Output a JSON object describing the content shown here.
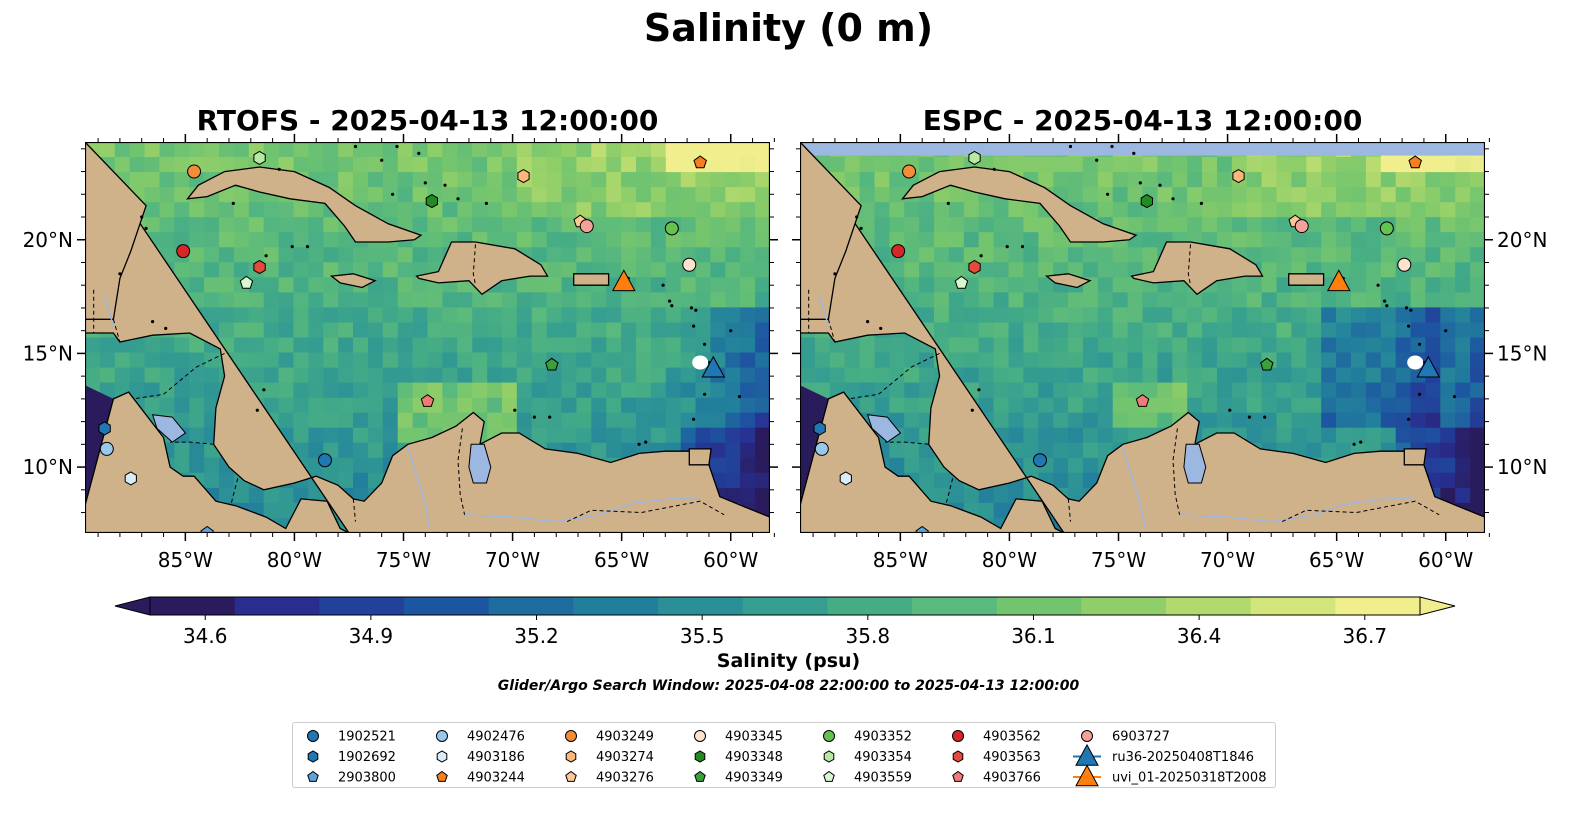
{
  "figure": {
    "title": "Salinity (0 m)",
    "colorbar_label": "Salinity (psu)",
    "search_window": "Glider/Argo Search Window: 2025-04-08 22:00:00 to 2025-04-13 12:00:00"
  },
  "panels": [
    {
      "title": "RTOFS - 2025-04-13 12:00:00"
    },
    {
      "title": "ESPC - 2025-04-13 12:00:00"
    }
  ],
  "axes": {
    "lon_ticks": [
      "85°W",
      "80°W",
      "75°W",
      "70°W",
      "65°W",
      "60°W"
    ],
    "lon_values": [
      -85,
      -80,
      -75,
      -70,
      -65,
      -60
    ],
    "lat_ticks": [
      "10°N",
      "15°N",
      "20°N"
    ],
    "lat_values": [
      10,
      15,
      20
    ],
    "lon_range": [
      -89.6,
      -58.2
    ],
    "lat_range": [
      7.1,
      24.3
    ]
  },
  "colorbar": {
    "min": 34.5,
    "max": 36.8,
    "ticks": [
      "34.6",
      "34.9",
      "35.2",
      "35.5",
      "35.8",
      "36.1",
      "36.4",
      "36.7"
    ],
    "tick_values": [
      34.6,
      34.9,
      35.2,
      35.5,
      35.8,
      36.1,
      36.4,
      36.7
    ],
    "colors": [
      "#2a1c5c",
      "#282d8e",
      "#22419a",
      "#1d56a0",
      "#1f6c9f",
      "#227f9c",
      "#2b8f97",
      "#369e90",
      "#45ac86",
      "#5ab97c",
      "#72c46f",
      "#8fce69",
      "#b1d96d",
      "#d2e67b",
      "#f1ee8e"
    ]
  },
  "colors": {
    "land": "#d0b28a",
    "lake": "#9cb7e0",
    "ocean_mid": "#52b184",
    "deep_pacific": "#2a1c5c",
    "espc_missing": "#9cb7e0"
  },
  "legend": [
    {
      "label": "1902521",
      "marker": "circle",
      "color": "#1f77b4"
    },
    {
      "label": "1902692",
      "marker": "hexagon",
      "color": "#1f77b4"
    },
    {
      "label": "2903800",
      "marker": "pentagon",
      "color": "#5fa2dd"
    },
    {
      "label": "4902476",
      "marker": "circle",
      "color": "#98c8ec"
    },
    {
      "label": "4903186",
      "marker": "hexagon",
      "color": "#d8ecfa"
    },
    {
      "label": "4903244",
      "marker": "pentagon",
      "color": "#f47f1c"
    },
    {
      "label": "4903249",
      "marker": "circle",
      "color": "#f28d3a"
    },
    {
      "label": "4903274",
      "marker": "hexagon",
      "color": "#fdb77a"
    },
    {
      "label": "4903276",
      "marker": "pentagon",
      "color": "#fdc896"
    },
    {
      "label": "4903345",
      "marker": "circle",
      "color": "#fde2cc"
    },
    {
      "label": "4903348",
      "marker": "hexagon",
      "color": "#228b22"
    },
    {
      "label": "4903349",
      "marker": "pentagon",
      "color": "#3aa13a"
    },
    {
      "label": "4903352",
      "marker": "circle",
      "color": "#66c24f"
    },
    {
      "label": "4903354",
      "marker": "hexagon",
      "color": "#b6eaa3"
    },
    {
      "label": "4903559",
      "marker": "pentagon",
      "color": "#d9f7cf"
    },
    {
      "label": "4903562",
      "marker": "circle",
      "color": "#d62728"
    },
    {
      "label": "4903563",
      "marker": "hexagon",
      "color": "#e34a3a"
    },
    {
      "label": "4903766",
      "marker": "pentagon",
      "color": "#f07a78"
    },
    {
      "label": "6903727",
      "marker": "circle",
      "color": "#f4a19a"
    },
    {
      "label": "ru36-20250408T1846",
      "marker": "triangle",
      "color": "#1f77b4"
    },
    {
      "label": "uvi_01-20250318T2008",
      "marker": "triangle",
      "color": "#ff7f0e"
    }
  ],
  "floats": [
    {
      "id": "1902521",
      "lon": -78.6,
      "lat": 10.3
    },
    {
      "id": "1902692",
      "lon": -88.7,
      "lat": 11.7
    },
    {
      "id": "2903800",
      "lon": -84.0,
      "lat": 7.1
    },
    {
      "id": "4902476",
      "lon": -88.6,
      "lat": 10.8
    },
    {
      "id": "4903186",
      "lon": -87.5,
      "lat": 9.5
    },
    {
      "id": "4903244",
      "lon": -61.4,
      "lat": 23.4
    },
    {
      "id": "4903249",
      "lon": -84.6,
      "lat": 23.0
    },
    {
      "id": "4903274",
      "lon": -69.5,
      "lat": 22.8
    },
    {
      "id": "4903276",
      "lon": -66.9,
      "lat": 20.8
    },
    {
      "id": "4903345",
      "lon": -61.9,
      "lat": 18.9
    },
    {
      "id": "4903348",
      "lon": -73.7,
      "lat": 21.7
    },
    {
      "id": "4903349",
      "lon": -68.2,
      "lat": 14.5
    },
    {
      "id": "4903352",
      "lon": -62.7,
      "lat": 20.5
    },
    {
      "id": "4903354",
      "lon": -81.6,
      "lat": 23.6
    },
    {
      "id": "4903559",
      "lon": -82.2,
      "lat": 18.1
    },
    {
      "id": "4903562",
      "lon": -85.1,
      "lat": 19.5
    },
    {
      "id": "4903563",
      "lon": -81.6,
      "lat": 18.8
    },
    {
      "id": "4903766",
      "lon": -73.9,
      "lat": 12.9
    },
    {
      "id": "6903727",
      "lon": -66.6,
      "lat": 20.6
    }
  ],
  "gliders": [
    {
      "id": "ru36-20250408T1846",
      "lon": -60.8,
      "lat": 14.3
    },
    {
      "id": "uvi_01-20250318T2008",
      "lon": -64.9,
      "lat": 18.1
    }
  ]
}
